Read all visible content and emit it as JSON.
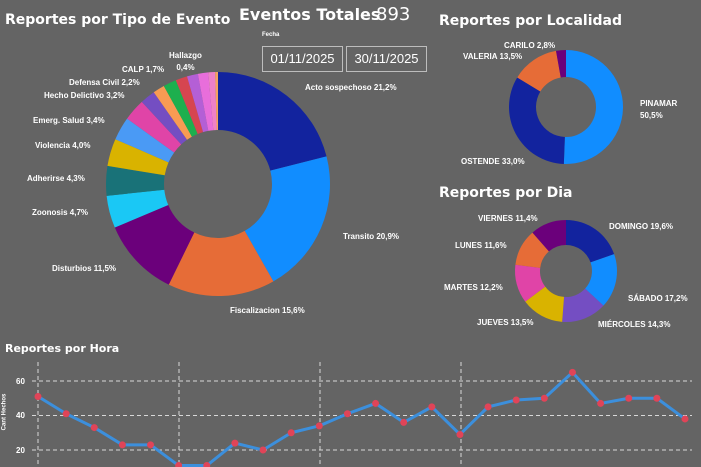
{
  "header": {
    "total_label": "Eventos Totales",
    "total_value": "893",
    "date_filter_label": "Fecha",
    "date_from": "01/11/2025",
    "date_to": "30/11/2025"
  },
  "chart_data": [
    {
      "type": "pie",
      "title": "Reportes por Tipo de Evento",
      "slices": [
        {
          "label": "Acto sospechoso",
          "value": 21.2,
          "display": "Acto sospechoso 21,2%",
          "color": "#12239E"
        },
        {
          "label": "Transito",
          "value": 20.9,
          "display": "Transito 20,9%",
          "color": "#118DFF"
        },
        {
          "label": "Fiscalizacion",
          "value": 15.6,
          "display": "Fiscalizacion 15,6%",
          "color": "#E66C37"
        },
        {
          "label": "Disturbios",
          "value": 11.5,
          "display": "Disturbios 11,5%",
          "color": "#6B007B"
        },
        {
          "label": "Zoonosis",
          "value": 4.7,
          "display": "Zoonosis 4,7%",
          "color": "#1AC8F5"
        },
        {
          "label": "Adherirse",
          "value": 4.3,
          "display": "Adherirse 4,3%",
          "color": "#197278"
        },
        {
          "label": "Violencia",
          "value": 4.0,
          "display": "Violencia 4,0%",
          "color": "#D9B300"
        },
        {
          "label": "Emerg. Salud",
          "value": 3.4,
          "display": "Emerg. Salud 3,4%",
          "color": "#4A9AF5"
        },
        {
          "label": "Hecho Delictivo",
          "value": 3.2,
          "display": "Hecho Delictivo 3,2%",
          "color": "#E044A7"
        },
        {
          "label": "Defensa Civil",
          "value": 2.2,
          "display": "Defensa Civil 2,2%",
          "color": "#744EC2"
        },
        {
          "label": "CALP",
          "value": 1.7,
          "display": "CALP 1,7%",
          "color": "#F89B53"
        },
        {
          "label": "",
          "value": 1.9,
          "display": "",
          "color": "#1DAF4E"
        },
        {
          "label": "",
          "value": 1.7,
          "display": "",
          "color": "#D64550"
        },
        {
          "label": "",
          "value": 1.6,
          "display": "",
          "color": "#B45FD6"
        },
        {
          "label": "",
          "value": 1.5,
          "display": "",
          "color": "#E86EDB"
        },
        {
          "label": "",
          "value": 1.0,
          "display": "",
          "color": "#EE80C9"
        },
        {
          "label": "Hallazgo",
          "value": 0.4,
          "display": "Hallazgo 0,4%",
          "color": "#F4A261"
        }
      ]
    },
    {
      "type": "pie",
      "title": "Reportes por Localidad",
      "slices": [
        {
          "label": "PINAMAR",
          "value": 50.5,
          "display": "50,5%",
          "color": "#118DFF"
        },
        {
          "label": "OSTENDE",
          "value": 33.0,
          "display": "OSTENDE 33,0%",
          "color": "#12239E"
        },
        {
          "label": "VALERIA",
          "value": 13.5,
          "display": "VALERIA 13,5%",
          "color": "#E66C37"
        },
        {
          "label": "CARILO",
          "value": 2.8,
          "display": "CARILO 2,8%",
          "color": "#6B007B"
        }
      ]
    },
    {
      "type": "pie",
      "title": "Reportes por Dia",
      "slices": [
        {
          "label": "DOMINGO",
          "value": 19.6,
          "display": "DOMINGO 19,6%",
          "color": "#12239E"
        },
        {
          "label": "SÁBADO",
          "value": 17.2,
          "display": "SÁBADO 17,2%",
          "color": "#118DFF"
        },
        {
          "label": "MIÉRCOLES",
          "value": 14.3,
          "display": "MIÉRCOLES 14,3%",
          "color": "#744EC2"
        },
        {
          "label": "JUEVES",
          "value": 13.5,
          "display": "JUEVES 13,5%",
          "color": "#D9B300"
        },
        {
          "label": "MARTES",
          "value": 12.2,
          "display": "MARTES 12,2%",
          "color": "#E044A7"
        },
        {
          "label": "LUNES",
          "value": 11.6,
          "display": "LUNES 11,6%",
          "color": "#E66C37"
        },
        {
          "label": "VIERNES",
          "value": 11.4,
          "display": "VIERNES 11,4%",
          "color": "#6B007B"
        }
      ]
    },
    {
      "type": "line",
      "title": "Reportes por Hora",
      "ylabel": "Cant Hechos",
      "xlabel": "",
      "yticks": [
        20,
        40,
        60
      ],
      "ylim": [
        10,
        70
      ],
      "grid": true,
      "line_color": "#3C8FDC",
      "marker_color": "#E04458",
      "x": [
        0,
        1,
        2,
        3,
        4,
        5,
        6,
        7,
        8,
        9,
        10,
        11,
        12,
        13,
        14,
        15,
        16,
        17,
        18,
        19,
        20,
        21,
        22,
        23
      ],
      "values": [
        51,
        41,
        33,
        23,
        23,
        11,
        11,
        24,
        20,
        30,
        34,
        41,
        47,
        36,
        45,
        29,
        45,
        49,
        50,
        65,
        47,
        50,
        50,
        38
      ]
    }
  ]
}
